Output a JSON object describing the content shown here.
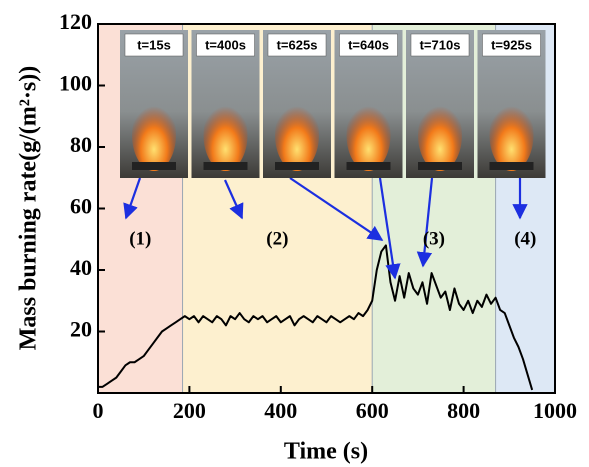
{
  "chart_data": {
    "type": "line",
    "x_label": "Time (s)",
    "y_label": "Mass burning rate(g/(m²·s))",
    "xlim": [
      0,
      1000
    ],
    "xticks": [
      0,
      200,
      400,
      600,
      800,
      1000
    ],
    "ylim": [
      0,
      120
    ],
    "yticks": [
      20,
      40,
      60,
      80,
      100,
      120
    ],
    "phases": [
      {
        "label": "(1)",
        "start": 0,
        "end": 185,
        "color": "#fbe0d6"
      },
      {
        "label": "(2)",
        "start": 185,
        "end": 600,
        "color": "#fdf0cf"
      },
      {
        "label": "(3)",
        "start": 600,
        "end": 870,
        "color": "#e3efd9"
      },
      {
        "label": "(4)",
        "start": 870,
        "end": 1000,
        "color": "#dde8f5"
      }
    ],
    "photo_labels": [
      "t=15s",
      "t=400s",
      "t=625s",
      "t=640s",
      "t=710s",
      "t=925s"
    ],
    "series": [
      {
        "color": "#000000",
        "x": [
          0,
          10,
          20,
          30,
          40,
          50,
          60,
          70,
          80,
          90,
          100,
          110,
          120,
          130,
          140,
          150,
          160,
          170,
          180,
          190,
          200,
          210,
          220,
          230,
          240,
          250,
          260,
          270,
          280,
          290,
          300,
          310,
          320,
          330,
          340,
          350,
          360,
          370,
          380,
          390,
          400,
          410,
          420,
          430,
          440,
          450,
          460,
          470,
          480,
          490,
          500,
          510,
          520,
          530,
          540,
          550,
          560,
          570,
          580,
          590,
          600,
          610,
          620,
          630,
          640,
          650,
          660,
          670,
          680,
          690,
          700,
          710,
          720,
          730,
          740,
          750,
          760,
          770,
          780,
          790,
          800,
          810,
          820,
          830,
          840,
          850,
          860,
          870,
          880,
          890,
          900,
          910,
          920,
          930,
          940,
          950
        ],
        "values": [
          2,
          2,
          3,
          4,
          5,
          7,
          9,
          10,
          10,
          11,
          12,
          14,
          16,
          18,
          20,
          21,
          22,
          23,
          24,
          25,
          24,
          25,
          23,
          25,
          24,
          23,
          25,
          24,
          22,
          25,
          24,
          26,
          24,
          23,
          25,
          24,
          25,
          23,
          24,
          25,
          23,
          24,
          25,
          22,
          24,
          25,
          24,
          23,
          25,
          24,
          23,
          25,
          24,
          23,
          24,
          25,
          24,
          26,
          25,
          27,
          30,
          40,
          46,
          48,
          36,
          30,
          38,
          31,
          39,
          34,
          32,
          36,
          29,
          39,
          35,
          31,
          33,
          27,
          34,
          29,
          27,
          30,
          26,
          30,
          28,
          32,
          29,
          31,
          27,
          26,
          22,
          18,
          15,
          11,
          6,
          1
        ]
      }
    ]
  }
}
